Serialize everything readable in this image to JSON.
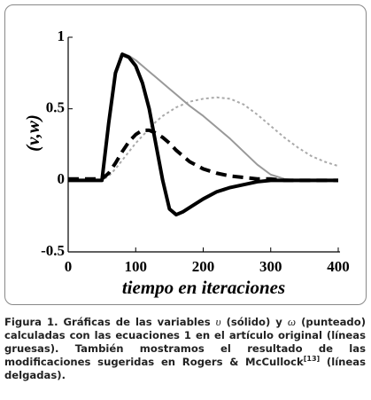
{
  "chart_data": {
    "type": "line",
    "ylabel": "(v,w)",
    "xlabel": "tiempo en iteraciones",
    "x": [
      0,
      50,
      60,
      70,
      80,
      90,
      100,
      110,
      120,
      130,
      140,
      150,
      160,
      170,
      180,
      200,
      220,
      240,
      260,
      280,
      300,
      320,
      340,
      360,
      380,
      400
    ],
    "series": [
      {
        "color": "#aaaaaa",
        "style": "dotted",
        "linewidth": 2,
        "values": [
          0,
          0,
          0.03,
          0.08,
          0.14,
          0.2,
          0.26,
          0.31,
          0.36,
          0.41,
          0.45,
          0.48,
          0.51,
          0.53,
          0.55,
          0.57,
          0.58,
          0.57,
          0.53,
          0.46,
          0.38,
          0.3,
          0.23,
          0.17,
          0.13,
          0.1
        ]
      },
      {
        "color": "#999999",
        "style": "solid",
        "linewidth": 2,
        "values": [
          0,
          0,
          0.4,
          0.75,
          0.89,
          0.87,
          0.84,
          0.8,
          0.76,
          0.72,
          0.68,
          0.64,
          0.6,
          0.56,
          0.52,
          0.45,
          0.37,
          0.29,
          0.2,
          0.11,
          0.04,
          0.01,
          0,
          0,
          0,
          0
        ]
      },
      {
        "color": "#000000",
        "style": "dashed",
        "linewidth": 4,
        "values": [
          0.01,
          0.01,
          0.05,
          0.12,
          0.2,
          0.27,
          0.32,
          0.35,
          0.35,
          0.33,
          0.3,
          0.26,
          0.21,
          0.17,
          0.13,
          0.08,
          0.05,
          0.03,
          0.02,
          0.01,
          0.01,
          0,
          0,
          0,
          0,
          0
        ]
      },
      {
        "color": "#000000",
        "style": "solid",
        "linewidth": 4,
        "values": [
          0,
          0,
          0.4,
          0.75,
          0.88,
          0.86,
          0.8,
          0.68,
          0.5,
          0.25,
          0,
          -0.2,
          -0.24,
          -0.22,
          -0.19,
          -0.13,
          -0.08,
          -0.05,
          -0.03,
          -0.01,
          0,
          0,
          0,
          0,
          0,
          0
        ]
      }
    ],
    "xlim": [
      0,
      400
    ],
    "xticks": [
      0,
      100,
      200,
      300,
      400
    ],
    "ylim": [
      -0.5,
      1
    ],
    "yticks": [
      -0.5,
      0,
      0.5,
      1
    ],
    "caption": [
      "Figura 1.",
      " Gráficas de las variables ",
      "υ",
      " (sólido) y ",
      "ω",
      " (punteado) calculadas con las ecuaciones 1 en el artículo original (líneas gruesas). También mostramos el resultado de las modificaciones sugeridas en Rogers & McCullock",
      "[13]",
      " (líneas delgadas)."
    ]
  }
}
